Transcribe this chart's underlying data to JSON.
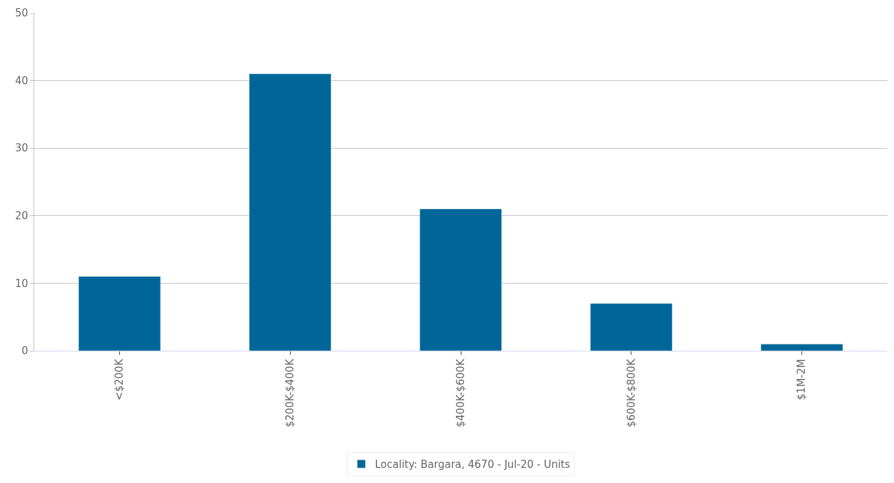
{
  "chart_data": {
    "type": "bar",
    "categories": [
      "<$200K",
      "$200K-$400K",
      "$400K-$600K",
      "$600K-$800K",
      "$1M-2M"
    ],
    "series": [
      {
        "name": "Locality: Bargara, 4670 - Jul-20 - Units",
        "color": "#006699",
        "values": [
          11,
          41,
          21,
          7,
          1
        ]
      }
    ],
    "ylim": [
      0,
      50
    ],
    "yticks": [
      0,
      10,
      20,
      30,
      40,
      50
    ],
    "grid": "y",
    "legend": "bottom"
  }
}
